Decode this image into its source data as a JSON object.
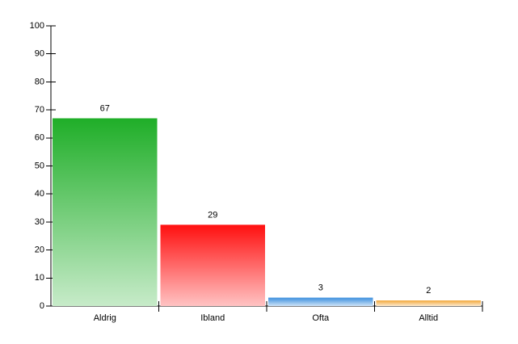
{
  "chart_data": {
    "type": "bar",
    "categories": [
      "Aldrig",
      "Ibland",
      "Ofta",
      "Alltid"
    ],
    "values": [
      67,
      29,
      3,
      2
    ],
    "colors": [
      "#1fae28",
      "#ff0f0f",
      "#3b8fde",
      "#f2a83a"
    ],
    "ylim": [
      0,
      100
    ],
    "yticks": [
      0,
      10,
      20,
      30,
      40,
      50,
      60,
      70,
      80,
      90,
      100
    ],
    "grid": false
  }
}
